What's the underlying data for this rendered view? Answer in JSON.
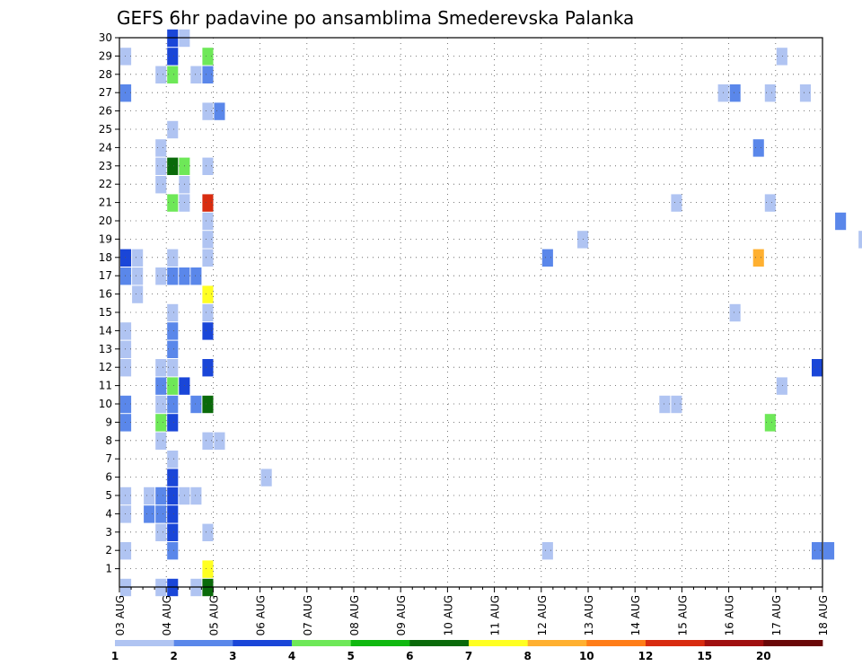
{
  "chart_data": {
    "type": "heatmap",
    "title": "GEFS 6hr padavine po ansamblima Smederevska Palanka",
    "xlabel": "",
    "ylabel": "",
    "x_tick_labels": [
      "03 AUG",
      "04 AUG",
      "05 AUG",
      "06 AUG",
      "07 AUG",
      "08 AUG",
      "09 AUG",
      "10 AUG",
      "11 AUG",
      "12 AUG",
      "13 AUG",
      "14 AUG",
      "15 AUG",
      "16 AUG",
      "17 AUG",
      "18 AUG"
    ],
    "y_tick_labels": [
      "1",
      "2",
      "3",
      "4",
      "5",
      "6",
      "7",
      "8",
      "9",
      "10",
      "11",
      "12",
      "13",
      "14",
      "15",
      "16",
      "17",
      "18",
      "19",
      "20",
      "21",
      "22",
      "23",
      "24",
      "25",
      "26",
      "27",
      "28",
      "29",
      "30"
    ],
    "x_range_days": [
      0,
      15
    ],
    "y_range": [
      0,
      30
    ],
    "grid": true,
    "colorbar": {
      "labels": [
        "1",
        "2",
        "3",
        "4",
        "5",
        "6",
        "7",
        "8",
        "10",
        "12",
        "15",
        "20"
      ],
      "colors": [
        "#b0c4f2",
        "#5a87ea",
        "#1a46d8",
        "#6ee858",
        "#10b810",
        "#0a6a0a",
        "#ffff22",
        "#ffb030",
        "#ff7d18",
        "#d82c10",
        "#a01010",
        "#6a0808"
      ]
    },
    "cells": [
      {
        "t": 0.0,
        "m": 0,
        "c": 1
      },
      {
        "t": 0.0,
        "m": 4,
        "c": 1
      },
      {
        "t": 0.0,
        "m": 5,
        "c": 1
      },
      {
        "t": 0.0,
        "m": 2,
        "c": 1
      },
      {
        "t": 0.0,
        "m": 9,
        "c": 2
      },
      {
        "t": 0.0,
        "m": 10,
        "c": 2
      },
      {
        "t": 0.0,
        "m": 12,
        "c": 1
      },
      {
        "t": 0.0,
        "m": 13,
        "c": 1
      },
      {
        "t": 0.0,
        "m": 14,
        "c": 1
      },
      {
        "t": 0.0,
        "m": 17,
        "c": 2
      },
      {
        "t": 0.0,
        "m": 18,
        "c": 3
      },
      {
        "t": 0.0,
        "m": 27,
        "c": 2
      },
      {
        "t": 0.0,
        "m": 29,
        "c": 1
      },
      {
        "t": 0.25,
        "m": 16,
        "c": 1
      },
      {
        "t": 0.25,
        "m": 17,
        "c": 1
      },
      {
        "t": 0.25,
        "m": 18,
        "c": 1
      },
      {
        "t": 0.5,
        "m": 4,
        "c": 2
      },
      {
        "t": 0.5,
        "m": 5,
        "c": 1
      },
      {
        "t": 0.75,
        "m": 0,
        "c": 1
      },
      {
        "t": 0.75,
        "m": 3,
        "c": 1
      },
      {
        "t": 0.75,
        "m": 4,
        "c": 2
      },
      {
        "t": 0.75,
        "m": 5,
        "c": 2
      },
      {
        "t": 0.75,
        "m": 8,
        "c": 1
      },
      {
        "t": 0.75,
        "m": 9,
        "c": 4
      },
      {
        "t": 0.75,
        "m": 10,
        "c": 1
      },
      {
        "t": 0.75,
        "m": 11,
        "c": 2
      },
      {
        "t": 0.75,
        "m": 12,
        "c": 1
      },
      {
        "t": 0.75,
        "m": 17,
        "c": 1
      },
      {
        "t": 0.75,
        "m": 22,
        "c": 1
      },
      {
        "t": 0.75,
        "m": 23,
        "c": 1
      },
      {
        "t": 0.75,
        "m": 24,
        "c": 1
      },
      {
        "t": 0.75,
        "m": 28,
        "c": 1
      },
      {
        "t": 1.0,
        "m": 0,
        "c": 3
      },
      {
        "t": 1.0,
        "m": 2,
        "c": 2
      },
      {
        "t": 1.0,
        "m": 3,
        "c": 3
      },
      {
        "t": 1.0,
        "m": 4,
        "c": 3
      },
      {
        "t": 1.0,
        "m": 5,
        "c": 3
      },
      {
        "t": 1.0,
        "m": 6,
        "c": 3
      },
      {
        "t": 1.0,
        "m": 7,
        "c": 1
      },
      {
        "t": 1.0,
        "m": 9,
        "c": 3
      },
      {
        "t": 1.0,
        "m": 10,
        "c": 2
      },
      {
        "t": 1.0,
        "m": 11,
        "c": 4
      },
      {
        "t": 1.0,
        "m": 12,
        "c": 1
      },
      {
        "t": 1.0,
        "m": 13,
        "c": 2
      },
      {
        "t": 1.0,
        "m": 14,
        "c": 2
      },
      {
        "t": 1.0,
        "m": 15,
        "c": 1
      },
      {
        "t": 1.0,
        "m": 17,
        "c": 2
      },
      {
        "t": 1.0,
        "m": 18,
        "c": 1
      },
      {
        "t": 1.0,
        "m": 21,
        "c": 4
      },
      {
        "t": 1.0,
        "m": 23,
        "c": 6
      },
      {
        "t": 1.0,
        "m": 25,
        "c": 1
      },
      {
        "t": 1.0,
        "m": 28,
        "c": 4
      },
      {
        "t": 1.0,
        "m": 29,
        "c": 3
      },
      {
        "t": 1.0,
        "m": 30,
        "c": 3
      },
      {
        "t": 1.25,
        "m": 5,
        "c": 1
      },
      {
        "t": 1.25,
        "m": 11,
        "c": 3
      },
      {
        "t": 1.25,
        "m": 17,
        "c": 2
      },
      {
        "t": 1.25,
        "m": 21,
        "c": 1
      },
      {
        "t": 1.25,
        "m": 22,
        "c": 1
      },
      {
        "t": 1.25,
        "m": 23,
        "c": 4
      },
      {
        "t": 1.25,
        "m": 30,
        "c": 1
      },
      {
        "t": 1.5,
        "m": 0,
        "c": 1
      },
      {
        "t": 1.5,
        "m": 5,
        "c": 1
      },
      {
        "t": 1.5,
        "m": 10,
        "c": 2
      },
      {
        "t": 1.5,
        "m": 17,
        "c": 2
      },
      {
        "t": 1.5,
        "m": 28,
        "c": 1
      },
      {
        "t": 1.75,
        "m": 0,
        "c": 6
      },
      {
        "t": 1.75,
        "m": 1,
        "c": 7
      },
      {
        "t": 1.75,
        "m": 3,
        "c": 1
      },
      {
        "t": 1.75,
        "m": 8,
        "c": 1
      },
      {
        "t": 1.75,
        "m": 10,
        "c": 6
      },
      {
        "t": 1.75,
        "m": 12,
        "c": 3
      },
      {
        "t": 1.75,
        "m": 14,
        "c": 3
      },
      {
        "t": 1.75,
        "m": 15,
        "c": 1
      },
      {
        "t": 1.75,
        "m": 16,
        "c": 7
      },
      {
        "t": 1.75,
        "m": 18,
        "c": 1
      },
      {
        "t": 1.75,
        "m": 19,
        "c": 1
      },
      {
        "t": 1.75,
        "m": 20,
        "c": 1
      },
      {
        "t": 1.75,
        "m": 21,
        "c": 10
      },
      {
        "t": 1.75,
        "m": 23,
        "c": 1
      },
      {
        "t": 1.75,
        "m": 26,
        "c": 1
      },
      {
        "t": 1.75,
        "m": 28,
        "c": 2
      },
      {
        "t": 1.75,
        "m": 29,
        "c": 4
      },
      {
        "t": 2.0,
        "m": 8,
        "c": 1
      },
      {
        "t": 2.0,
        "m": 26,
        "c": 2
      },
      {
        "t": 3.0,
        "m": 6,
        "c": 1
      },
      {
        "t": 9.0,
        "m": 2,
        "c": 1
      },
      {
        "t": 9.0,
        "m": 18,
        "c": 2
      },
      {
        "t": 9.75,
        "m": 19,
        "c": 1
      },
      {
        "t": 11.5,
        "m": 10,
        "c": 1
      },
      {
        "t": 11.75,
        "m": 10,
        "c": 1
      },
      {
        "t": 11.75,
        "m": 21,
        "c": 1
      },
      {
        "t": 12.75,
        "m": 27,
        "c": 1
      },
      {
        "t": 13.0,
        "m": 15,
        "c": 1
      },
      {
        "t": 13.0,
        "m": 27,
        "c": 2
      },
      {
        "t": 13.5,
        "m": 18,
        "c": 8
      },
      {
        "t": 13.5,
        "m": 24,
        "c": 2
      },
      {
        "t": 13.75,
        "m": 9,
        "c": 4
      },
      {
        "t": 13.75,
        "m": 21,
        "c": 1
      },
      {
        "t": 13.75,
        "m": 27,
        "c": 1
      },
      {
        "t": 14.0,
        "m": 11,
        "c": 1
      },
      {
        "t": 14.0,
        "m": 29,
        "c": 1
      },
      {
        "t": 14.5,
        "m": 27,
        "c": 1
      },
      {
        "t": 14.75,
        "m": 2,
        "c": 2
      },
      {
        "t": 14.75,
        "m": 12,
        "c": 3
      },
      {
        "t": 15.0,
        "m": 2,
        "c": 2
      },
      {
        "t": 15.25,
        "m": 20,
        "c": 2
      },
      {
        "t": 15.75,
        "m": 19,
        "c": 1
      }
    ]
  }
}
